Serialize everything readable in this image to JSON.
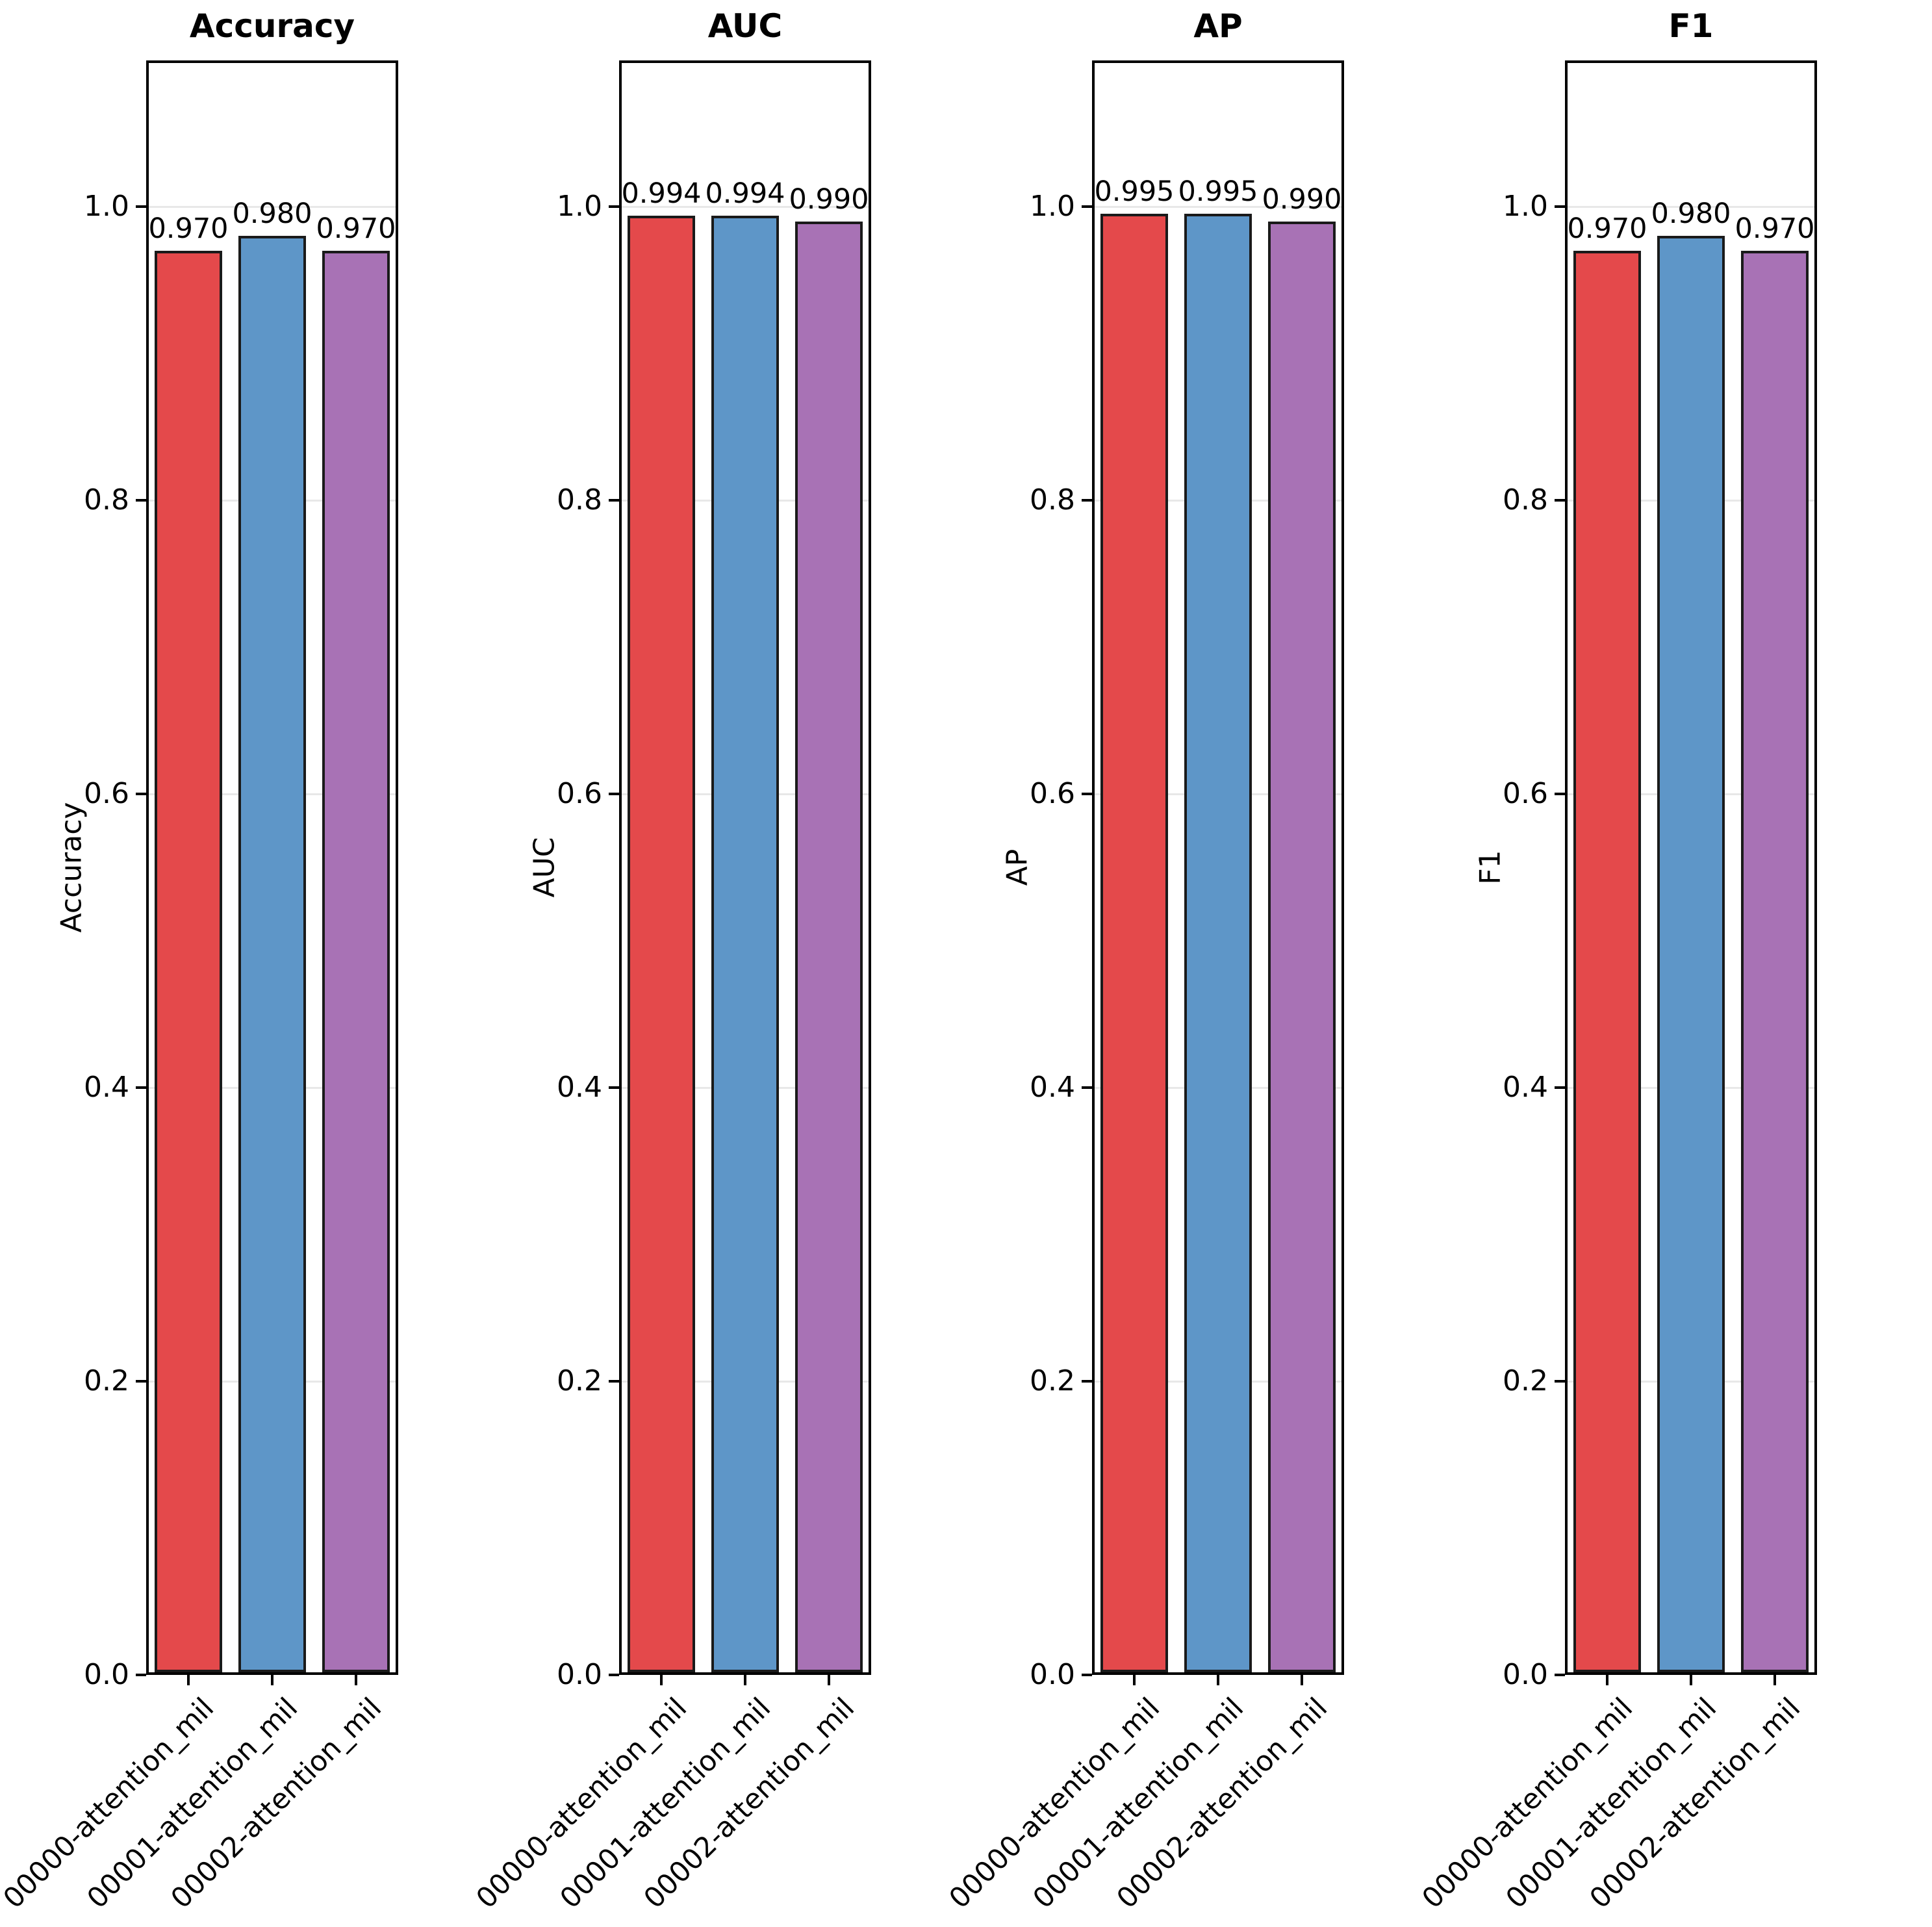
{
  "style": {
    "background": "#ffffff",
    "bar_colors": [
      "#e4494b",
      "#5e96c8",
      "#a872b5"
    ],
    "bar_edge_color": "#1a1a1a",
    "spine_color": "#000000",
    "grid_color": "#e8e8e8",
    "text_color": "#000000"
  },
  "axes": {
    "ytick_labels": [
      "0.0",
      "0.2",
      "0.4",
      "0.6",
      "0.8",
      "1.0"
    ],
    "ytick_values": [
      0.0,
      0.2,
      0.4,
      0.6,
      0.8,
      1.0
    ],
    "ylim": [
      0,
      1.1
    ],
    "grid": true,
    "legend": "none",
    "xtick_rotation_deg": 45
  },
  "categories": [
    "00000-attention_mil",
    "00001-attention_mil",
    "00002-attention_mil"
  ],
  "chart_data": [
    {
      "type": "bar",
      "title": "Accuracy",
      "ylabel": "Accuracy",
      "xlabel": "",
      "categories": [
        "00000-attention_mil",
        "00001-attention_mil",
        "00002-attention_mil"
      ],
      "values": [
        0.97,
        0.98,
        0.97
      ],
      "bar_labels": [
        "0.970",
        "0.980",
        "0.970"
      ],
      "ylim": [
        0,
        1.1
      ]
    },
    {
      "type": "bar",
      "title": "AUC",
      "ylabel": "AUC",
      "xlabel": "",
      "categories": [
        "00000-attention_mil",
        "00001-attention_mil",
        "00002-attention_mil"
      ],
      "values": [
        0.994,
        0.994,
        0.99
      ],
      "bar_labels": [
        "0.994",
        "0.994",
        "0.990"
      ],
      "ylim": [
        0,
        1.1
      ]
    },
    {
      "type": "bar",
      "title": "AP",
      "ylabel": "AP",
      "xlabel": "",
      "categories": [
        "00000-attention_mil",
        "00001-attention_mil",
        "00002-attention_mil"
      ],
      "values": [
        0.995,
        0.995,
        0.99
      ],
      "bar_labels": [
        "0.995",
        "0.995",
        "0.990"
      ],
      "ylim": [
        0,
        1.1
      ]
    },
    {
      "type": "bar",
      "title": "F1",
      "ylabel": "F1",
      "xlabel": "",
      "categories": [
        "00000-attention_mil",
        "00001-attention_mil",
        "00002-attention_mil"
      ],
      "values": [
        0.97,
        0.98,
        0.97
      ],
      "bar_labels": [
        "0.970",
        "0.980",
        "0.970"
      ],
      "ylim": [
        0,
        1.1
      ]
    }
  ]
}
